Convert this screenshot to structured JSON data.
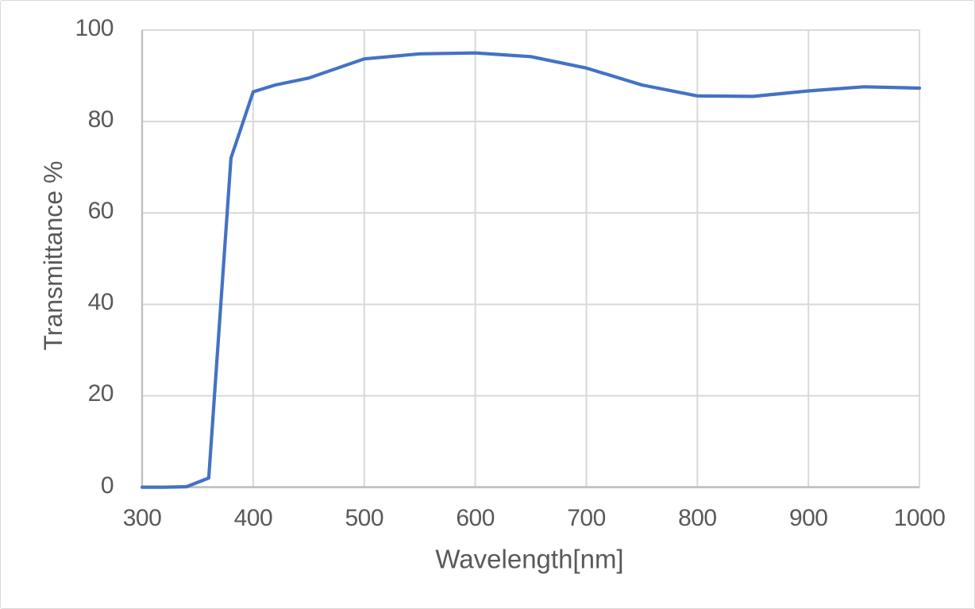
{
  "chart_data": {
    "type": "line",
    "title": "",
    "xlabel": "Wavelength[nm]",
    "ylabel": "Transmittance %",
    "xlim": [
      300,
      1000
    ],
    "ylim": [
      0,
      100
    ],
    "x_ticks": [
      300,
      400,
      500,
      600,
      700,
      800,
      900,
      1000
    ],
    "y_ticks": [
      0,
      20,
      40,
      60,
      80,
      100
    ],
    "grid": true,
    "legend": false,
    "series": [
      {
        "name": "Transmittance",
        "x": [
          300,
          320,
          340,
          360,
          380,
          400,
          420,
          450,
          500,
          550,
          600,
          650,
          700,
          750,
          800,
          850,
          900,
          950,
          1000
        ],
        "y": [
          0,
          0,
          0.1,
          2,
          72,
          86.5,
          88,
          89.5,
          93.7,
          94.8,
          95,
          94.2,
          91.7,
          88,
          85.6,
          85.5,
          86.7,
          87.6,
          87.3
        ]
      }
    ],
    "colors": {
      "series_line": "#4472c4",
      "gridline": "#d9d9d9",
      "axis_line": "#bfbfbf",
      "tick_text": "#595959",
      "background": "#ffffff",
      "frame_border": "#d9d9d9"
    }
  }
}
